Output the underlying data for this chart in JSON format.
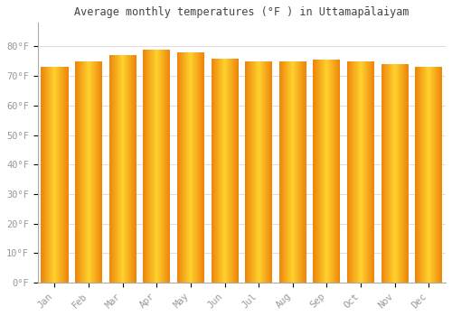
{
  "title": "Average monthly temperatures (°F ) in Uttamapālaiyam",
  "months": [
    "Jan",
    "Feb",
    "Mar",
    "Apr",
    "May",
    "Jun",
    "Jul",
    "Aug",
    "Sep",
    "Oct",
    "Nov",
    "Dec"
  ],
  "values": [
    73,
    75,
    77,
    79,
    78,
    76,
    75,
    75,
    75.5,
    75,
    74,
    73
  ],
  "background_color": "#FFFFFF",
  "grid_color": "#DDDDDD",
  "text_color": "#999999",
  "title_color": "#444444",
  "ylim": [
    0,
    88
  ],
  "yticks": [
    0,
    10,
    20,
    30,
    40,
    50,
    60,
    70,
    80
  ],
  "ylabel_suffix": "°F",
  "bar_width": 0.8,
  "bar_gradient_left": "#E8820A",
  "bar_gradient_center": "#FFD040",
  "bar_edge_color": "#C87010"
}
